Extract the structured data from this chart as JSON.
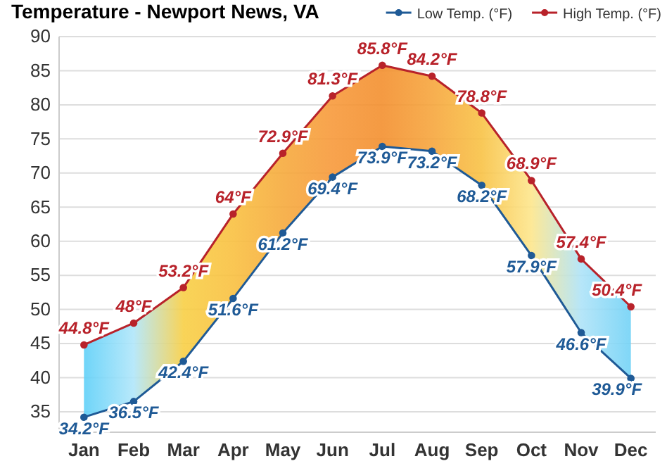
{
  "chart_data": {
    "type": "line",
    "title": "Temperature - Newport News, VA",
    "categories": [
      "Jan",
      "Feb",
      "Mar",
      "Apr",
      "May",
      "Jun",
      "Jul",
      "Aug",
      "Sep",
      "Oct",
      "Nov",
      "Dec"
    ],
    "series": [
      {
        "name": "Low Temp. (°F)",
        "color": "#1f5a96",
        "values": [
          34.2,
          36.5,
          42.4,
          51.6,
          61.2,
          69.4,
          73.9,
          73.2,
          68.2,
          57.9,
          46.6,
          39.9
        ],
        "value_labels": [
          "34.2°F",
          "36.5°F",
          "42.4°F",
          "51.6°F",
          "61.2°F",
          "69.4°F",
          "73.9°F",
          "73.2°F",
          "68.2°F",
          "57.9°F",
          "46.6°F",
          "39.9°F"
        ]
      },
      {
        "name": "High Temp. (°F)",
        "color": "#b8222a",
        "values": [
          44.8,
          48,
          53.2,
          64,
          72.9,
          81.3,
          85.8,
          84.2,
          78.8,
          68.9,
          57.4,
          50.4
        ],
        "value_labels": [
          "44.8°F",
          "48°F",
          "53.2°F",
          "64°F",
          "72.9°F",
          "81.3°F",
          "85.8°F",
          "84.2°F",
          "78.8°F",
          "68.9°F",
          "57.4°F",
          "50.4°F"
        ],
        "lower": [
          34.2,
          36.5,
          42.4,
          51.6,
          61.2,
          69.4,
          73.9,
          73.2,
          68.2,
          57.9,
          46.6,
          39.9
        ],
        "upper": [
          44.8,
          48,
          53.2,
          64,
          72.9,
          81.3,
          85.8,
          84.2,
          78.8,
          68.9,
          57.4,
          50.4
        ],
        "colors": [
          "#5fd0f8",
          "#b0e6fa",
          "#f8cf45",
          "#f9c040",
          "#f6aa3c",
          "#f7993a",
          "#f38f2e",
          "#f6a53c",
          "#f8c245",
          "#fde68c",
          "#aee3f8",
          "#72d2f6"
        ]
      }
    ],
    "ylim": [
      32,
      90
    ],
    "yticks": [
      35,
      40,
      45,
      50,
      55,
      60,
      65,
      70,
      75,
      80,
      85,
      90
    ],
    "grid": "y",
    "legend": "top",
    "marker": "circle",
    "line_style": "solid"
  }
}
